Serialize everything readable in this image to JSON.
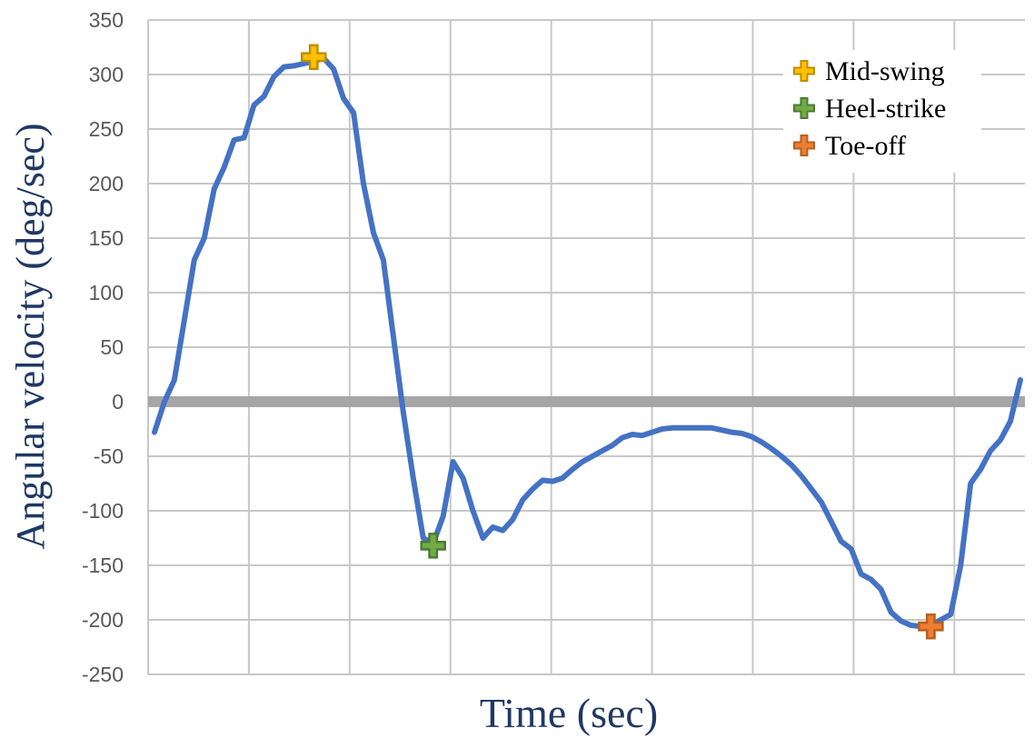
{
  "chart_data": {
    "type": "line",
    "title": "",
    "xlabel": "Time (sec)",
    "ylabel": "Angular velocity (deg/sec)",
    "ylim": [
      -250,
      350
    ],
    "yticks": [
      -250,
      -200,
      -150,
      -100,
      -50,
      0,
      50,
      100,
      150,
      200,
      250,
      300,
      350
    ],
    "x_tick_labels_shown": false,
    "grid": true,
    "legend_position": "top-right",
    "colors": {
      "line": "#4472c4",
      "zero_line": "#a6a6a6",
      "grid": "#c8c8c8",
      "axis_title": "#1f3864"
    },
    "series": [
      {
        "values": [
          -28,
          0,
          20,
          75,
          130,
          150,
          195,
          215,
          240,
          242,
          272,
          280,
          298,
          307,
          308,
          310,
          312,
          315,
          305,
          278,
          265,
          200,
          155,
          130,
          60,
          -10,
          -70,
          -125,
          -130,
          -105,
          -55,
          -70,
          -100,
          -125,
          -115,
          -118,
          -108,
          -90,
          -80,
          -72,
          -73,
          -70,
          -62,
          -55,
          -50,
          -45,
          -40,
          -33,
          -30,
          -31,
          -28,
          -25,
          -24,
          -24,
          -24,
          -24,
          -24,
          -26,
          -28,
          -29,
          -32,
          -37,
          -43,
          -50,
          -58,
          -68,
          -80,
          -92,
          -110,
          -128,
          -135,
          -158,
          -163,
          -172,
          -193,
          -201,
          -205,
          -206,
          -205,
          -200,
          -195,
          -150,
          -75,
          -62,
          -45,
          -35,
          -18,
          20
        ]
      }
    ],
    "markers": [
      {
        "label": "Mid-swing",
        "index": 16,
        "y": 316,
        "color": "#ffc000",
        "stroke": "#bf8f00"
      },
      {
        "label": "Heel-strike",
        "index": 28,
        "y": -132,
        "color": "#70ad47",
        "stroke": "#4e7a31"
      },
      {
        "label": "Toe-off",
        "index": 78,
        "y": -206,
        "color": "#ed7d31",
        "stroke": "#b85f1f"
      }
    ],
    "legend": [
      "Mid-swing",
      "Heel-strike",
      "Toe-off"
    ]
  }
}
